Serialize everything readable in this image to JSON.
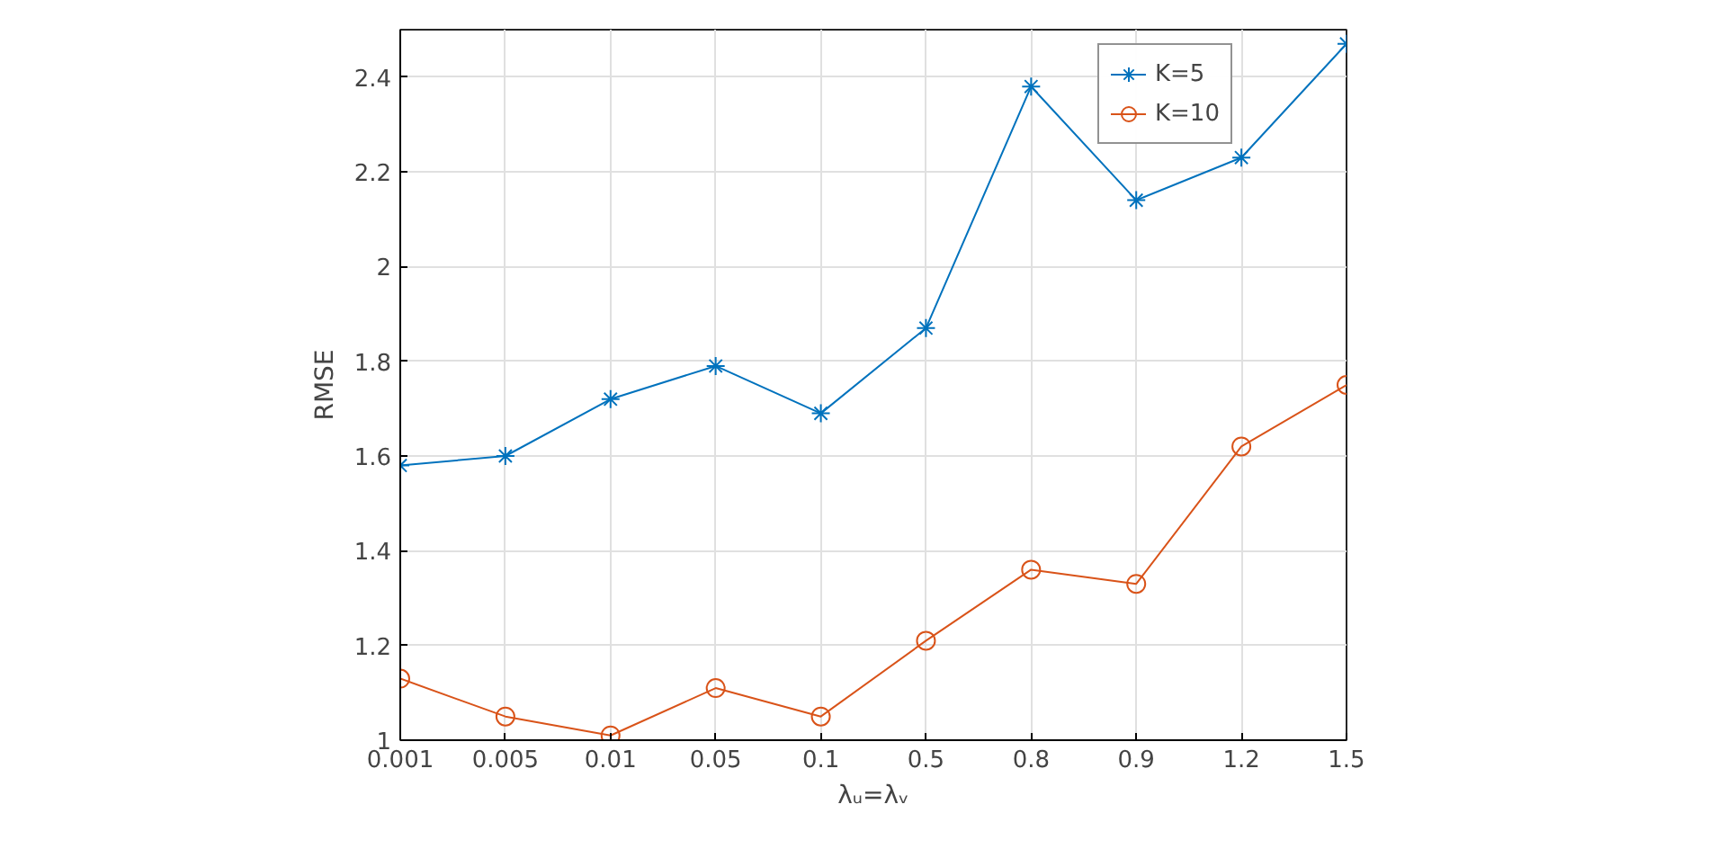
{
  "chart_data": {
    "type": "line",
    "xlabel": "λᵤ=λᵥ",
    "ylabel": "RMSE",
    "categories": [
      "0.001",
      "0.005",
      "0.01",
      "0.05",
      "0.1",
      "0.5",
      "0.8",
      "0.9",
      "1.2",
      "1.5"
    ],
    "series": [
      {
        "name": "K=5",
        "color": "#0072bd",
        "marker": "cross",
        "values": [
          1.58,
          1.6,
          1.72,
          1.79,
          1.69,
          1.87,
          2.38,
          2.14,
          2.23,
          2.47
        ]
      },
      {
        "name": "K=10",
        "color": "#d95319",
        "marker": "circle",
        "values": [
          1.13,
          1.05,
          1.01,
          1.11,
          1.05,
          1.21,
          1.36,
          1.33,
          1.62,
          1.75
        ]
      }
    ],
    "ylim": [
      1,
      2.5
    ],
    "yticks": [
      1,
      1.2,
      1.4,
      1.6,
      1.8,
      2,
      2.2,
      2.4
    ],
    "grid": true,
    "legend": "top right",
    "line_style": "solid"
  }
}
